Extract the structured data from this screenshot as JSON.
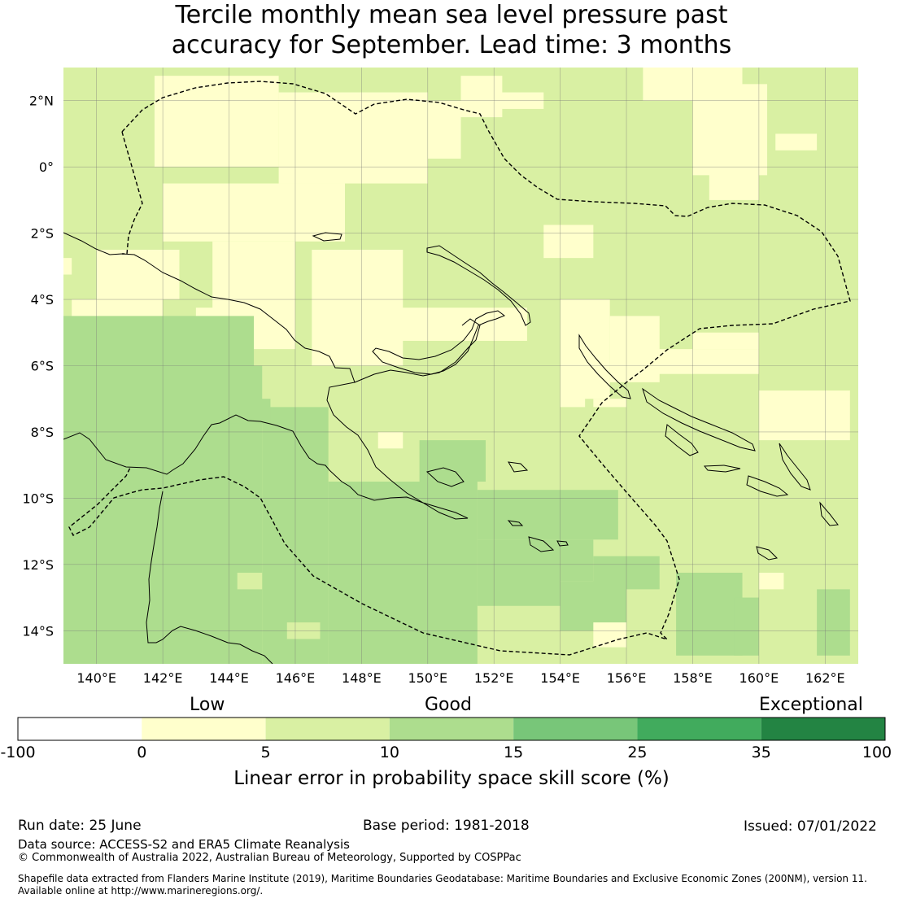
{
  "title": {
    "line1": "Tercile monthly mean sea level pressure past",
    "line2": "accuracy for September. Lead time: 3 months"
  },
  "map": {
    "lon_range": [
      139.0,
      163.0
    ],
    "lat_range": [
      -15.0,
      3.0
    ],
    "lon_ticks": [
      "140°E",
      "142°E",
      "144°E",
      "146°E",
      "148°E",
      "150°E",
      "152°E",
      "154°E",
      "156°E",
      "158°E",
      "160°E",
      "162°E"
    ],
    "lat_ticks": [
      "2°N",
      "0°",
      "2°S",
      "4°S",
      "6°S",
      "8°S",
      "10°S",
      "12°S",
      "14°S"
    ],
    "gridlines": true,
    "coastline_color": "#000000",
    "eez_boundary_style": "dashed"
  },
  "colorbar": {
    "categories": [
      "Low",
      "Good",
      "Exceptional"
    ],
    "tick_labels": [
      "-100",
      "0",
      "5",
      "10",
      "15",
      "25",
      "35",
      "100"
    ],
    "colors": [
      "#ffffff",
      "#ffffcc",
      "#d9f0a3",
      "#addd8e",
      "#78c679",
      "#41ab5d",
      "#238443"
    ],
    "label": "Linear error in probability space skill score (%)"
  },
  "footer": {
    "run_date": "Run date: 25 June",
    "base_period": "Base period: 1981-2018",
    "issued": "Issued: 07/01/2022",
    "data_source": "Data source: ACCESS-S2 and ERA5 Climate Reanalysis",
    "copyright": "© Commonwealth of Australia 2022, Australian Bureau of Meteorology, Supported by COSPPac",
    "shapefile_line1": "Shapefile data extracted from Flanders Marine Institute (2019), Maritime Boundaries Geodatabase: Maritime Boundaries and Exclusive Economic Zones (200NM), version 11.",
    "shapefile_line2": "Available online at http://www.marineregions.org/."
  }
}
